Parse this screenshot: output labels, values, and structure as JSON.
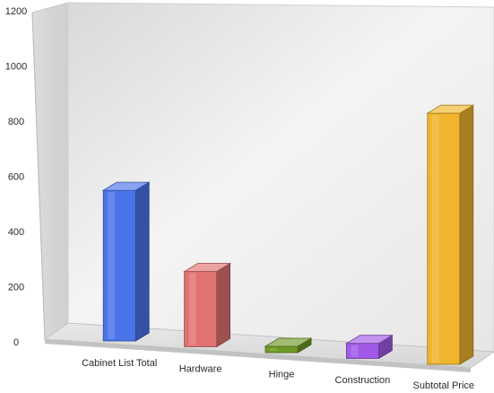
{
  "chart_data": {
    "type": "bar",
    "title": "",
    "xlabel": "",
    "ylabel": "",
    "ylim": [
      0,
      1200
    ],
    "y_ticks": [
      "0",
      "200",
      "400",
      "600",
      "800",
      "1000",
      "1200"
    ],
    "categories": [
      "Cabinet List Total",
      "Hardware",
      "Hinge",
      "Construction",
      "Subtotal Price"
    ],
    "values": [
      600,
      300,
      25,
      60,
      1000
    ],
    "colors": [
      "#4a74ea",
      "#e07272",
      "#6e9a25",
      "#a15ae8",
      "#f0b52c"
    ],
    "style": "3d",
    "grid": false,
    "legend": "none"
  }
}
